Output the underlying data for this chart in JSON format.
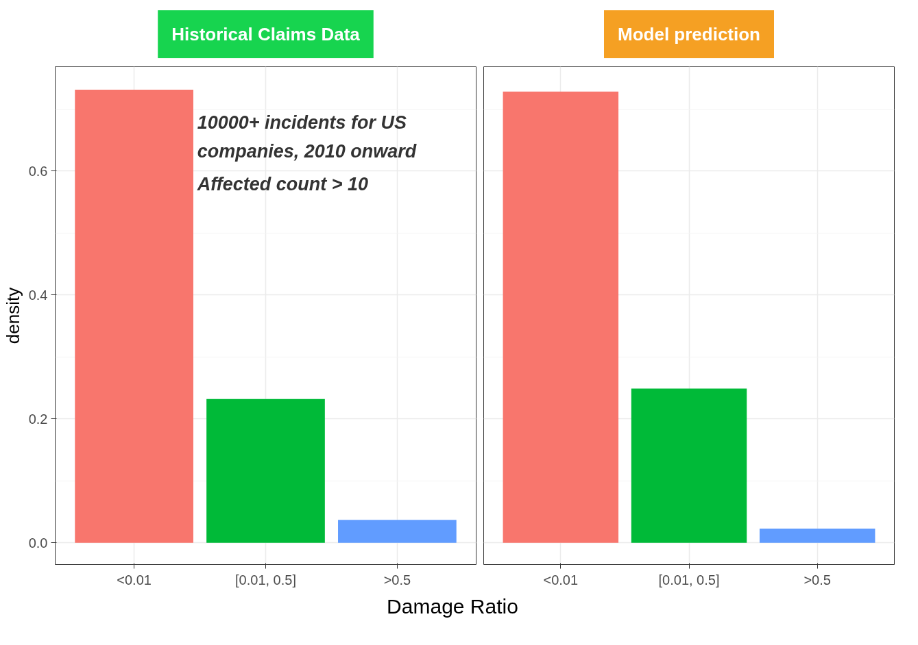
{
  "chart_data": [
    {
      "type": "bar",
      "title": "Historical Claims Data",
      "ylabel": "density",
      "xlabel": "Damage Ratio",
      "categories": [
        "<0.01",
        "[0.01, 0.5]",
        ">0.5"
      ],
      "colors": [
        "#f8766d",
        "#00ba38",
        "#619cff"
      ],
      "values": [
        0.731,
        0.232,
        0.037
      ],
      "ylim": [
        -0.035,
        0.768
      ],
      "yticks": [
        {
          "value": 0,
          "label": "0.0"
        },
        0.2,
        0.4,
        0.6
      ],
      "grid": true,
      "annotations": [
        "10000+ incidents for US companies, 2010 onward",
        "Affected count > 10"
      ]
    },
    {
      "type": "bar",
      "title": "Model prediction",
      "categories": [
        "<0.01",
        "[0.01, 0.5]",
        ">0.5"
      ],
      "colors": [
        "#f8766d",
        "#00ba38",
        "#619cff"
      ],
      "values": [
        0.728,
        0.249,
        0.023
      ],
      "ylim": [
        -0.035,
        0.768
      ],
      "yticks": [
        0,
        0.2,
        0.4,
        0.6
      ],
      "grid": true,
      "tick_labels": "x"
    }
  ]
}
